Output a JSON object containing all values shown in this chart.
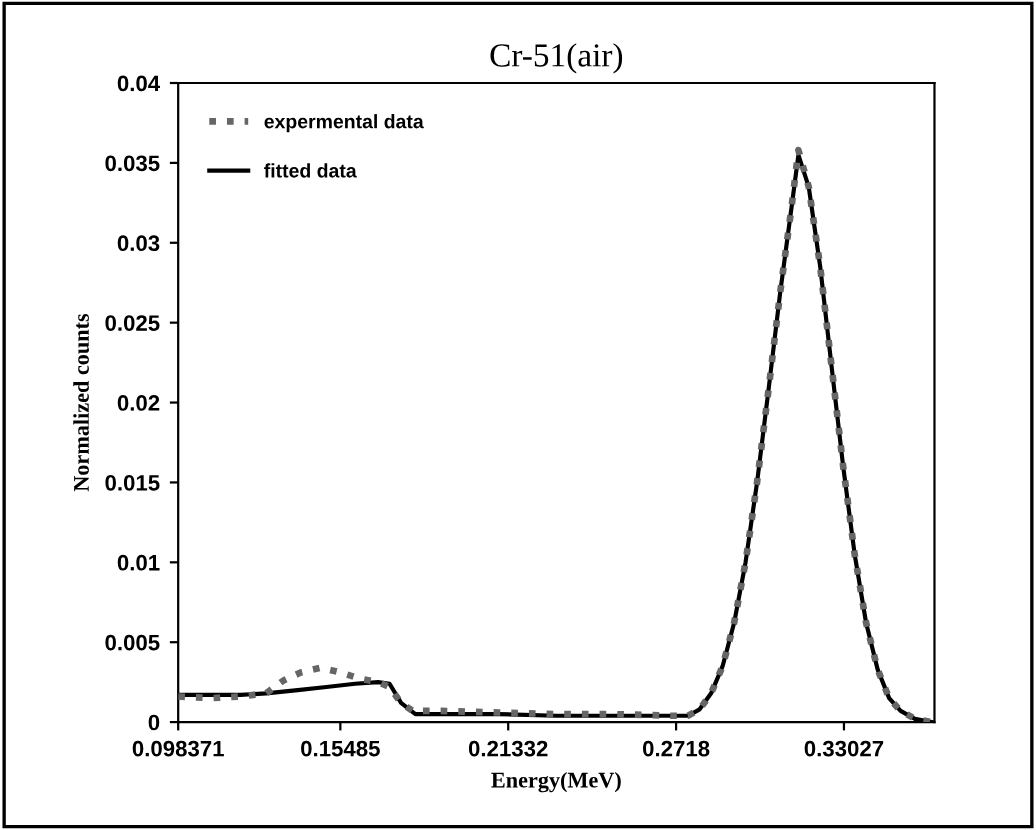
{
  "chart_data": {
    "type": "line",
    "title": "Cr-51(air)",
    "xlabel": "Energy(MeV)",
    "ylabel": "Normalized counts",
    "xlim": [
      0.098371,
      0.3618
    ],
    "xticks": [
      0.098371,
      0.15485,
      0.21332,
      0.2718,
      0.33027
    ],
    "ylim": [
      0,
      0.04
    ],
    "yticks": [
      0,
      0.005,
      0.01,
      0.015,
      0.02,
      0.025,
      0.03,
      0.035,
      0.04
    ],
    "grid": false,
    "legend": "top left",
    "series": [
      {
        "name": "expermental data",
        "color": "#666666",
        "line_style": "dotted",
        "x": [
          0.0984,
          0.11,
          0.12,
          0.129,
          0.135,
          0.141,
          0.148,
          0.155,
          0.162,
          0.168,
          0.172,
          0.176,
          0.18,
          0.19,
          0.21,
          0.23,
          0.25,
          0.27,
          0.276,
          0.28,
          0.284,
          0.288,
          0.292,
          0.296,
          0.3,
          0.304,
          0.308,
          0.312,
          0.3144,
          0.318,
          0.322,
          0.326,
          0.33,
          0.334,
          0.338,
          0.342,
          0.346,
          0.35,
          0.355,
          0.361
        ],
        "values": [
          0.0016,
          0.0015,
          0.0016,
          0.0018,
          0.0026,
          0.0031,
          0.0034,
          0.0031,
          0.0027,
          0.0025,
          0.0022,
          0.0012,
          0.0007,
          0.0007,
          0.0006,
          0.0005,
          0.0005,
          0.0004,
          0.0004,
          0.0008,
          0.0018,
          0.0035,
          0.0062,
          0.01,
          0.015,
          0.0208,
          0.0268,
          0.0322,
          0.0358,
          0.0335,
          0.0285,
          0.0222,
          0.016,
          0.0105,
          0.0062,
          0.0033,
          0.0015,
          0.0007,
          0.0002,
          0.0
        ]
      },
      {
        "name": "fitted data",
        "color": "#000000",
        "line_style": "solid",
        "x": [
          0.0984,
          0.11,
          0.12,
          0.129,
          0.14,
          0.15,
          0.16,
          0.168,
          0.172,
          0.176,
          0.181,
          0.19,
          0.21,
          0.23,
          0.25,
          0.27,
          0.276,
          0.28,
          0.284,
          0.288,
          0.292,
          0.296,
          0.3,
          0.304,
          0.308,
          0.312,
          0.3144,
          0.318,
          0.322,
          0.326,
          0.33,
          0.334,
          0.338,
          0.342,
          0.346,
          0.35,
          0.355,
          0.361
        ],
        "values": [
          0.0017,
          0.0017,
          0.0017,
          0.0018,
          0.002,
          0.0022,
          0.0024,
          0.0025,
          0.0024,
          0.0012,
          0.0005,
          0.0005,
          0.0005,
          0.0004,
          0.0004,
          0.0004,
          0.0004,
          0.0008,
          0.0018,
          0.0035,
          0.0062,
          0.01,
          0.015,
          0.0208,
          0.0268,
          0.0322,
          0.0355,
          0.0335,
          0.0285,
          0.0222,
          0.016,
          0.0105,
          0.0062,
          0.0033,
          0.0015,
          0.0007,
          0.0002,
          0.0
        ]
      }
    ]
  }
}
